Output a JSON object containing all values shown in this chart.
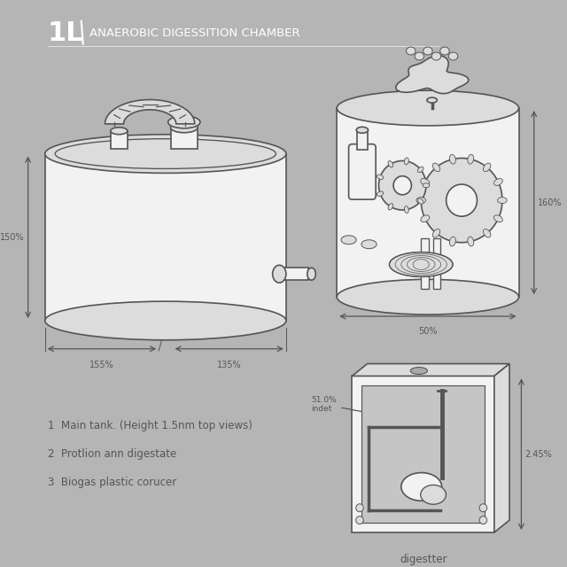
{
  "bg_color": "#b5b5b5",
  "title_large": "1L",
  "title_small": "ANAEROBIC DIGESSITION CHAMBER",
  "line_color": "#555555",
  "white_fill": "#f2f2f2",
  "light_fill": "#dcdcdc",
  "dark_fill": "#888888",
  "text_color": "#ffffff",
  "notes": [
    "1  Main tank. (Height 1.5nm top views)",
    "2  Protlion ann digestate",
    "3  Biogas plastic corucer"
  ],
  "labels": {
    "height_left": "150%",
    "width_left": "155%",
    "width_right": "135%",
    "circle_height": "160%",
    "circle_width": "50%",
    "box_inlet": "51.0%\nindet",
    "box_height": "2.45%",
    "box_label": "digestter"
  }
}
